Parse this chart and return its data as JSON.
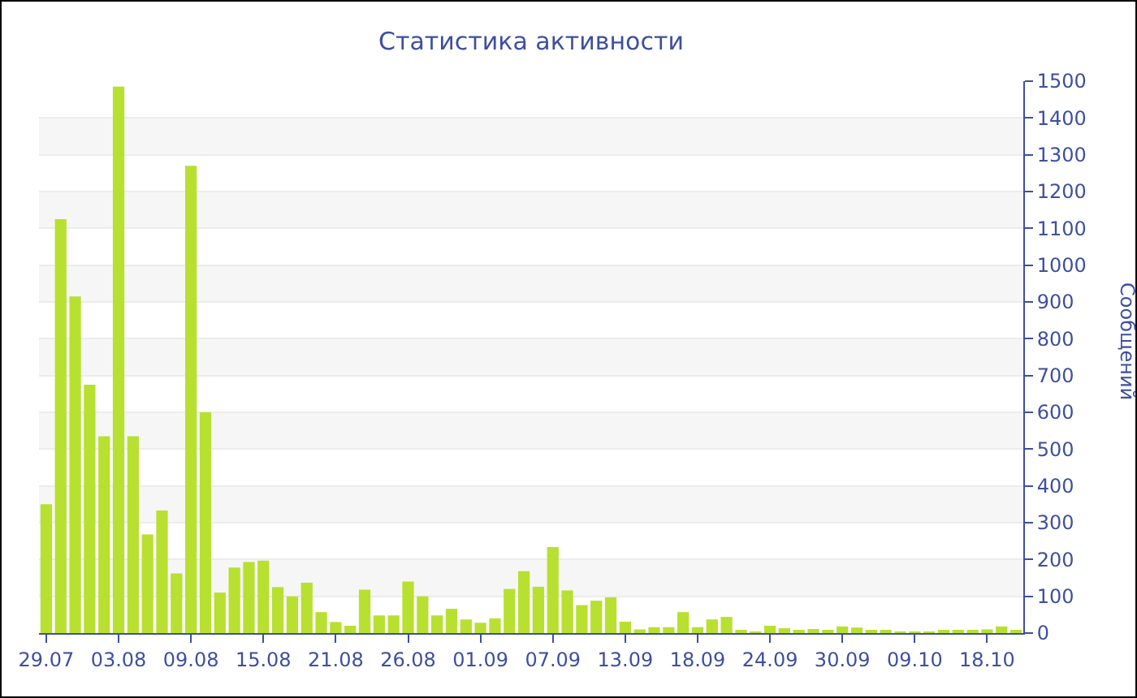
{
  "chart_data": {
    "type": "bar",
    "title": "Статистика активности",
    "ylabel": "Сообщений",
    "categories": [
      "29.07",
      null,
      null,
      null,
      null,
      "03.08",
      null,
      null,
      null,
      null,
      "09.08",
      null,
      null,
      null,
      null,
      "15.08",
      null,
      null,
      null,
      null,
      "21.08",
      null,
      null,
      null,
      null,
      "26.08",
      null,
      null,
      null,
      null,
      "01.09",
      null,
      null,
      null,
      null,
      "07.09",
      null,
      null,
      null,
      null,
      "13.09",
      null,
      null,
      null,
      null,
      "18.09",
      null,
      null,
      null,
      null,
      "24.09",
      null,
      null,
      null,
      null,
      "30.09",
      null,
      null,
      null,
      null,
      "09.10",
      null,
      null,
      null,
      null,
      "18.10",
      null,
      null
    ],
    "values": [
      350,
      1125,
      915,
      675,
      535,
      1485,
      535,
      268,
      333,
      162,
      1270,
      600,
      110,
      178,
      193,
      197,
      125,
      100,
      137,
      57,
      30,
      20,
      118,
      48,
      48,
      140,
      100,
      48,
      66,
      37,
      28,
      40,
      120,
      168,
      126,
      234,
      116,
      76,
      88,
      97,
      31,
      10,
      16,
      16,
      57,
      16,
      37,
      44,
      5,
      3,
      20,
      13,
      7,
      11,
      5,
      18,
      15,
      6,
      7,
      4,
      4,
      4,
      6,
      7,
      5,
      10,
      18,
      8
    ],
    "color": "#b8e030",
    "ylim": [
      0,
      1500
    ],
    "yticks": [
      0,
      100,
      200,
      300,
      400,
      500,
      600,
      700,
      800,
      900,
      1000,
      1100,
      1200,
      1300,
      1400,
      1500
    ],
    "grid": true
  }
}
